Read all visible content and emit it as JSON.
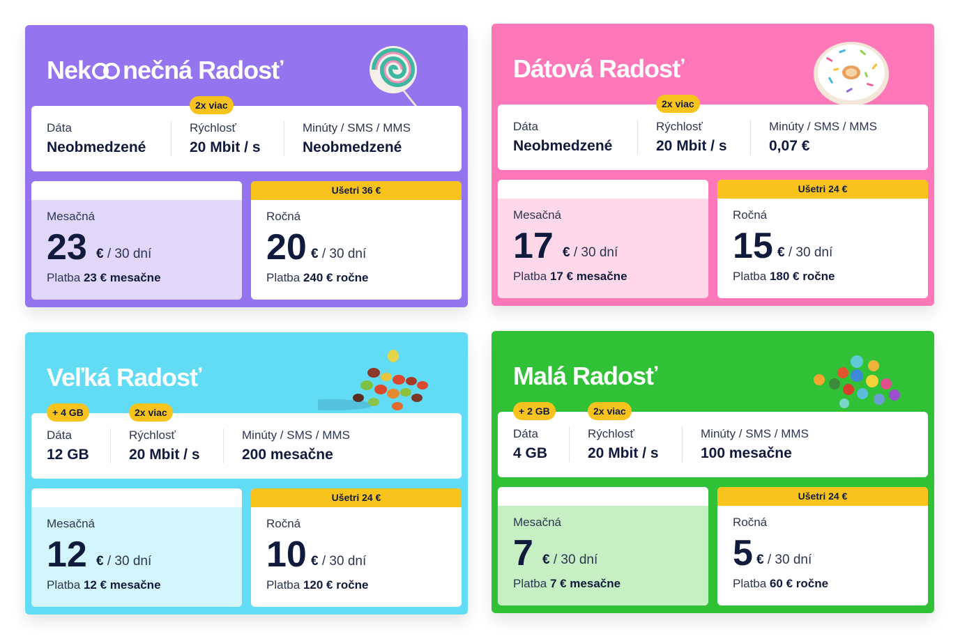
{
  "colors": {
    "purple": "#9474ef",
    "purple_light": "#e0d7fa",
    "pink": "#fe78b9",
    "pink_light": "#ffd8e9",
    "cyan": "#62dcf4",
    "cyan_light": "#d3f5fc",
    "green": "#31c136",
    "green_light": "#c6efc4",
    "badge_yellow": "#f8c31c"
  },
  "labels": {
    "data": "Dáta",
    "speed": "Rýchlosť",
    "calls": "Minúty / SMS / MMS",
    "monthly": "Mesačná",
    "yearly": "Ročná",
    "unit": "€ / 30 dní",
    "unit_euro": "€",
    "unit_days": "/ 30 dní",
    "pay_prefix": "Platba",
    "speed_badge": "2x viac"
  },
  "plans": [
    {
      "title_part1": "Nek",
      "title_part2": "nečná Radosť",
      "title_icon": "infinity-icon",
      "decoration": "lollipop-icon",
      "data_value": "Neobmedzené",
      "data_badge": "",
      "speed_value": "20 Mbit / s",
      "calls_value": "Neobmedzené",
      "monthly_price": "23",
      "monthly_pay": "23 € mesačne",
      "yearly_price": "20",
      "yearly_pay": "240 € ročne",
      "save": "Ušetri 36 €"
    },
    {
      "title": "Dátová Radosť",
      "decoration": "donut-icon",
      "data_value": "Neobmedzené",
      "data_badge": "",
      "speed_value": "20 Mbit / s",
      "calls_value": "0,07 €",
      "monthly_price": "17",
      "monthly_pay": "17 € mesačne",
      "yearly_price": "15",
      "yearly_pay": "180 € ročne",
      "save": "Ušetri 24 €"
    },
    {
      "title": "Veľká Radosť",
      "decoration": "candy-beans-icon",
      "data_value": "12 GB",
      "data_badge": "+ 4 GB",
      "speed_value": "20 Mbit / s",
      "calls_value": "200 mesačne",
      "monthly_price": "12",
      "monthly_pay": "12 € mesačne",
      "yearly_price": "10",
      "yearly_pay": "120 € ročne",
      "save": "Ušetri 24 €"
    },
    {
      "title": "Malá Radosť",
      "decoration": "candy-dots-icon",
      "data_value": "4 GB",
      "data_badge": "+ 2 GB",
      "speed_value": "20 Mbit / s",
      "calls_value": "100 mesačne",
      "monthly_price": "7",
      "monthly_pay": "7 € mesačne",
      "yearly_price": "5",
      "yearly_pay": "60 € ročne",
      "save": "Ušetri 24 €"
    }
  ]
}
